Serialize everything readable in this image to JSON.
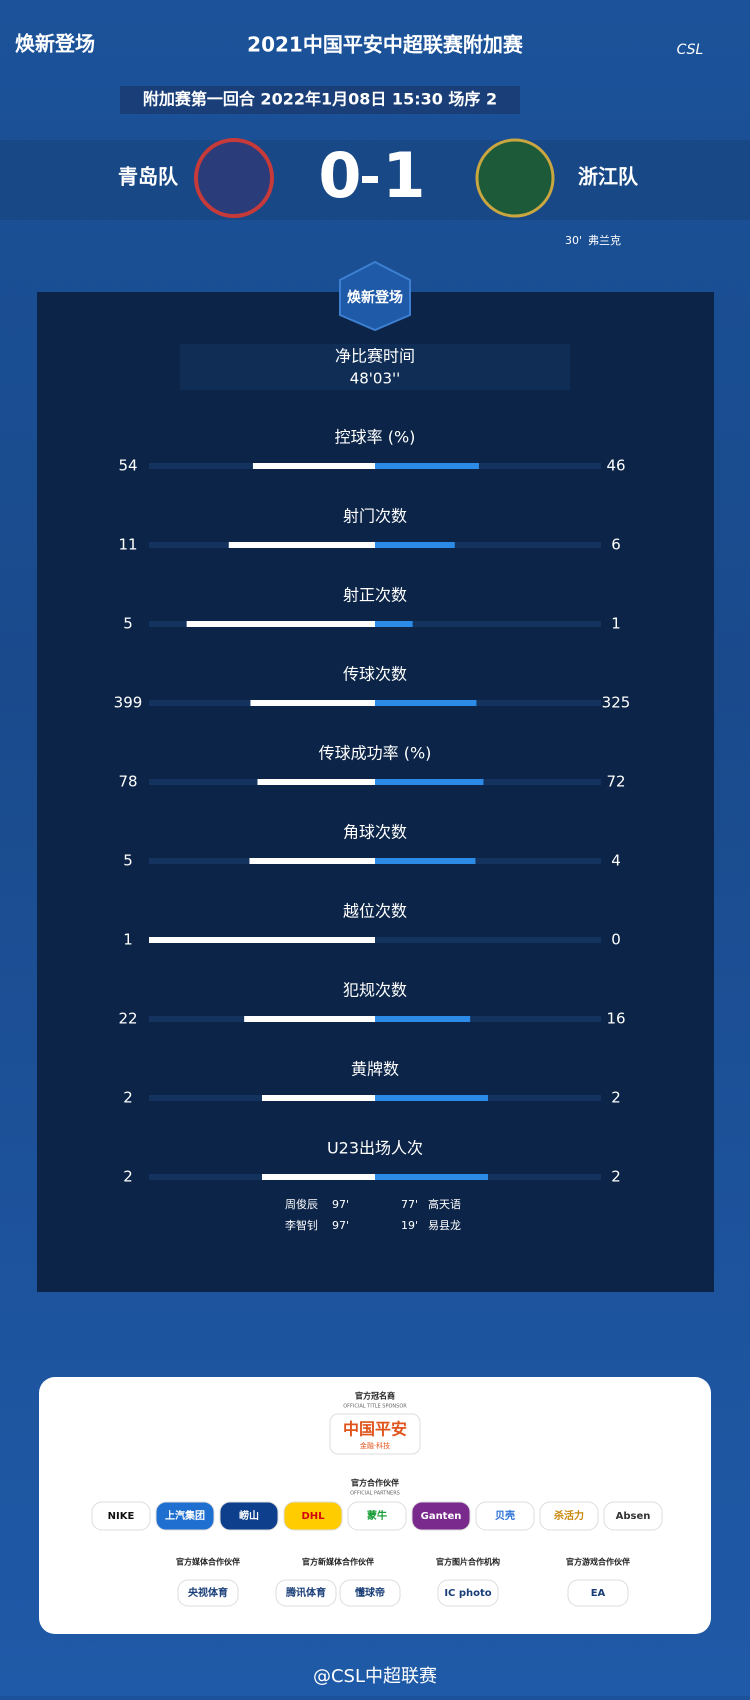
{
  "header": {
    "logo_text": "焕新登场",
    "title": "2021中国平安中超联赛附加赛",
    "match_info": "附加赛第一回合  2022年1月08日 15:30 场序 2",
    "league_mark": "CSL"
  },
  "match": {
    "home": "青岛队",
    "away": "浙江队",
    "home_score": 0,
    "away_score": 1,
    "scorers": [
      {
        "minute": "30'",
        "name": "弗兰克"
      }
    ]
  },
  "panel": {
    "badge": "焕新登场",
    "time_label": "净比赛时间",
    "time_value": "48'03''"
  },
  "stats": [
    {
      "label": "控球率 (%)",
      "home": 54,
      "away": 46
    },
    {
      "label": "射门次数",
      "home": 11,
      "away": 6
    },
    {
      "label": "射正次数",
      "home": 5,
      "away": 1
    },
    {
      "label": "传球次数",
      "home": 399,
      "away": 325
    },
    {
      "label": "传球成功率 (%)",
      "home": 78,
      "away": 72
    },
    {
      "label": "角球次数",
      "home": 5,
      "away": 4
    },
    {
      "label": "越位次数",
      "home": 1,
      "away": 0
    },
    {
      "label": "犯规次数",
      "home": 22,
      "away": 16
    },
    {
      "label": "黄牌数",
      "home": 2,
      "away": 2
    },
    {
      "label": "U23出场人次",
      "home": 2,
      "away": 2
    }
  ],
  "u23": {
    "home": [
      {
        "name": "周俊辰",
        "minute": "97'"
      },
      {
        "name": "李智钊",
        "minute": "97'"
      }
    ],
    "away": [
      {
        "minute": "77'",
        "name": "高天语"
      },
      {
        "minute": "19'",
        "name": "易县龙"
      }
    ]
  },
  "sponsors": {
    "title_label": "官方冠名商",
    "title_label_en": "OFFICIAL TITLE SPONSOR",
    "title_sponsor": "中国平安",
    "title_sponsor_sub": "金融·科技",
    "partners_label": "官方合作伙伴",
    "partners_label_en": "OFFICIAL PARTNERS",
    "partners": [
      "NIKE",
      "上汽集团",
      "崂山",
      "DHL",
      "蒙牛",
      "Ganten",
      "贝壳",
      "杀活力",
      "Absen"
    ],
    "groups": [
      {
        "label": "官方媒体合作伙伴",
        "logos": [
          "央视体育"
        ]
      },
      {
        "label": "官方新媒体合作伙伴",
        "logos": [
          "腾讯体育",
          "懂球帝"
        ]
      },
      {
        "label": "官方图片合作机构",
        "logos": [
          "IC photo"
        ]
      },
      {
        "label": "官方游戏合作伙伴",
        "logos": [
          "EA"
        ]
      }
    ]
  },
  "footer": "@CSL中超联赛"
}
